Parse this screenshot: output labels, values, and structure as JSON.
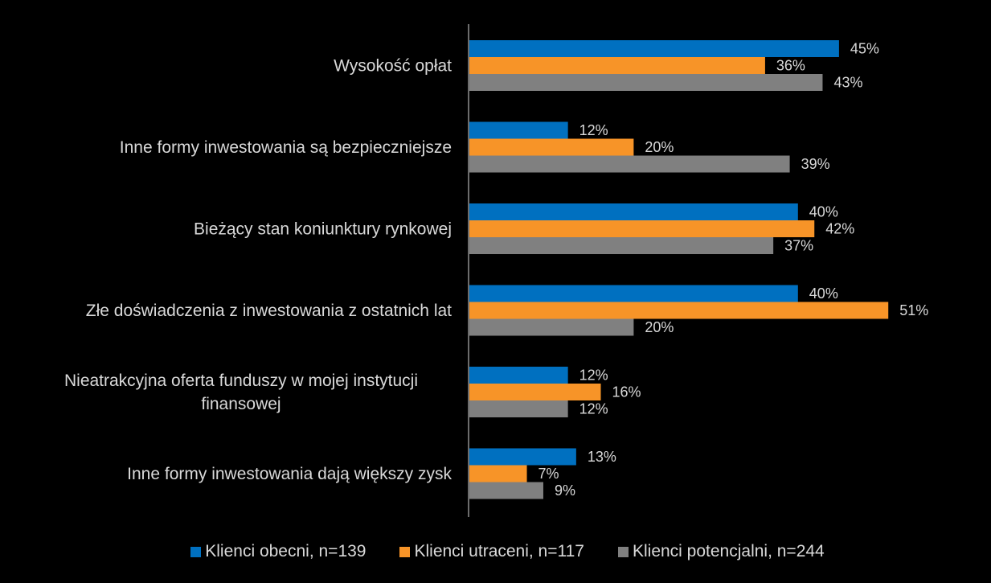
{
  "colors": {
    "background": "#000000",
    "text": "#d9d9d9",
    "axis": "#d9d9d9"
  },
  "chart_data": {
    "type": "bar",
    "orientation": "horizontal",
    "title": "",
    "xlabel": "",
    "ylabel": "",
    "xlim": [
      0,
      55
    ],
    "grid": false,
    "legend_position": "bottom",
    "value_format": "{v}%",
    "categories": [
      "Wysokość opłat",
      "Inne formy inwestowania są bezpieczniejsze",
      "Bieżący stan koniunktury rynkowej",
      "Złe doświadczenia z inwestowania z ostatnich lat",
      "Nieatrakcyjna oferta funduszy w mojej instytucji finansowej",
      "Inne formy inwestowania dają większy zysk"
    ],
    "category_lines": [
      [
        "Wysokość opłat"
      ],
      [
        "Inne formy inwestowania są bezpieczniejsze"
      ],
      [
        "Bieżący stan koniunktury rynkowej"
      ],
      [
        "Złe doświadczenia z inwestowania z ostatnich lat"
      ],
      [
        "Nieatrakcyjna oferta funduszy w mojej instytucji",
        "finansowej"
      ],
      [
        "Inne formy inwestowania dają większy zysk"
      ]
    ],
    "series": [
      {
        "name": "Klienci obecni, n=139",
        "color": "#0070c0",
        "values": [
          45,
          12,
          40,
          40,
          12,
          13
        ],
        "labels": [
          "45%",
          "12%",
          "40%",
          "40%",
          "12%",
          "13%"
        ]
      },
      {
        "name": "Klienci utraceni, n=117",
        "color": "#f79428",
        "values": [
          36,
          20,
          42,
          51,
          16,
          7
        ],
        "labels": [
          "36%",
          "20%",
          "42%",
          "51%",
          "16%",
          "7%"
        ]
      },
      {
        "name": "Klienci potencjalni, n=244",
        "color": "#808080",
        "values": [
          43,
          39,
          37,
          20,
          12,
          9
        ],
        "labels": [
          "43%",
          "39%",
          "37%",
          "20%",
          "12%",
          "9%"
        ]
      }
    ]
  }
}
